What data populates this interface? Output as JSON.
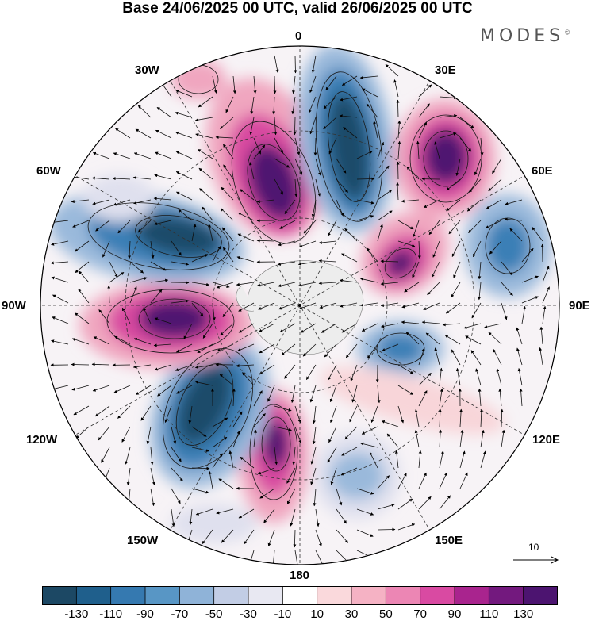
{
  "title": "Base 24/06/2025 00 UTC, valid 26/06/2025 00 UTC",
  "brand": "MODES",
  "brand_mark": "©",
  "longitude_labels": {
    "l0": "0",
    "l30e": "30E",
    "l60e": "60E",
    "l90e": "90E",
    "l120e": "120E",
    "l150e": "150E",
    "l180": "180",
    "l150w": "150W",
    "l120w": "120W",
    "l90w": "90W",
    "l60w": "60W",
    "l30w": "30W"
  },
  "reference_vector": {
    "label": "10"
  },
  "colorbar": {
    "ticks": [
      "-130",
      "-110",
      "-90",
      "-70",
      "-50",
      "-30",
      "-10",
      "10",
      "30",
      "50",
      "70",
      "90",
      "110",
      "130"
    ],
    "colors": [
      "#1c4864",
      "#1f5f8c",
      "#3579b0",
      "#5896c5",
      "#8fb3d8",
      "#c2cde5",
      "#e8e8f2",
      "#ffffff",
      "#fad9dc",
      "#f5b2c4",
      "#ec86b4",
      "#d94aa2",
      "#a9248e",
      "#73197e",
      "#4c1470"
    ]
  },
  "map": {
    "colors": {
      "neg_strong": "#1f4c6b",
      "neg_mid": "#3b7fb6",
      "neg_light": "#9ab9db",
      "neg_faint": "#dfe0ee",
      "pos_faint": "#f8d5d9",
      "pos_light": "#f0a6bf",
      "pos_mid": "#d84aa0",
      "pos_strong": "#4f1471",
      "land": "#ededed"
    }
  }
}
